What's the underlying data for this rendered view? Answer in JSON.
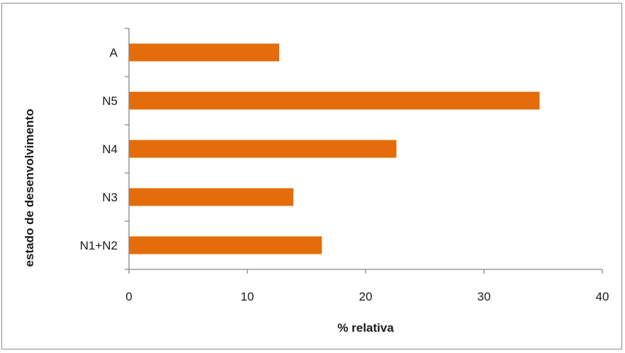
{
  "chart_data": {
    "type": "bar",
    "orientation": "horizontal",
    "categories": [
      "A",
      "N5",
      "N4",
      "N3",
      "N1+N2"
    ],
    "values": [
      12.7,
      34.7,
      22.6,
      13.9,
      16.3
    ],
    "xlabel": "% relativa",
    "ylabel": "estado de desenvolvimento",
    "xlim": [
      0,
      40
    ],
    "xticks": [
      "0",
      "10",
      "20",
      "30",
      "40"
    ],
    "grid": false,
    "legend": "none",
    "bar_color": "#E46C0A"
  }
}
